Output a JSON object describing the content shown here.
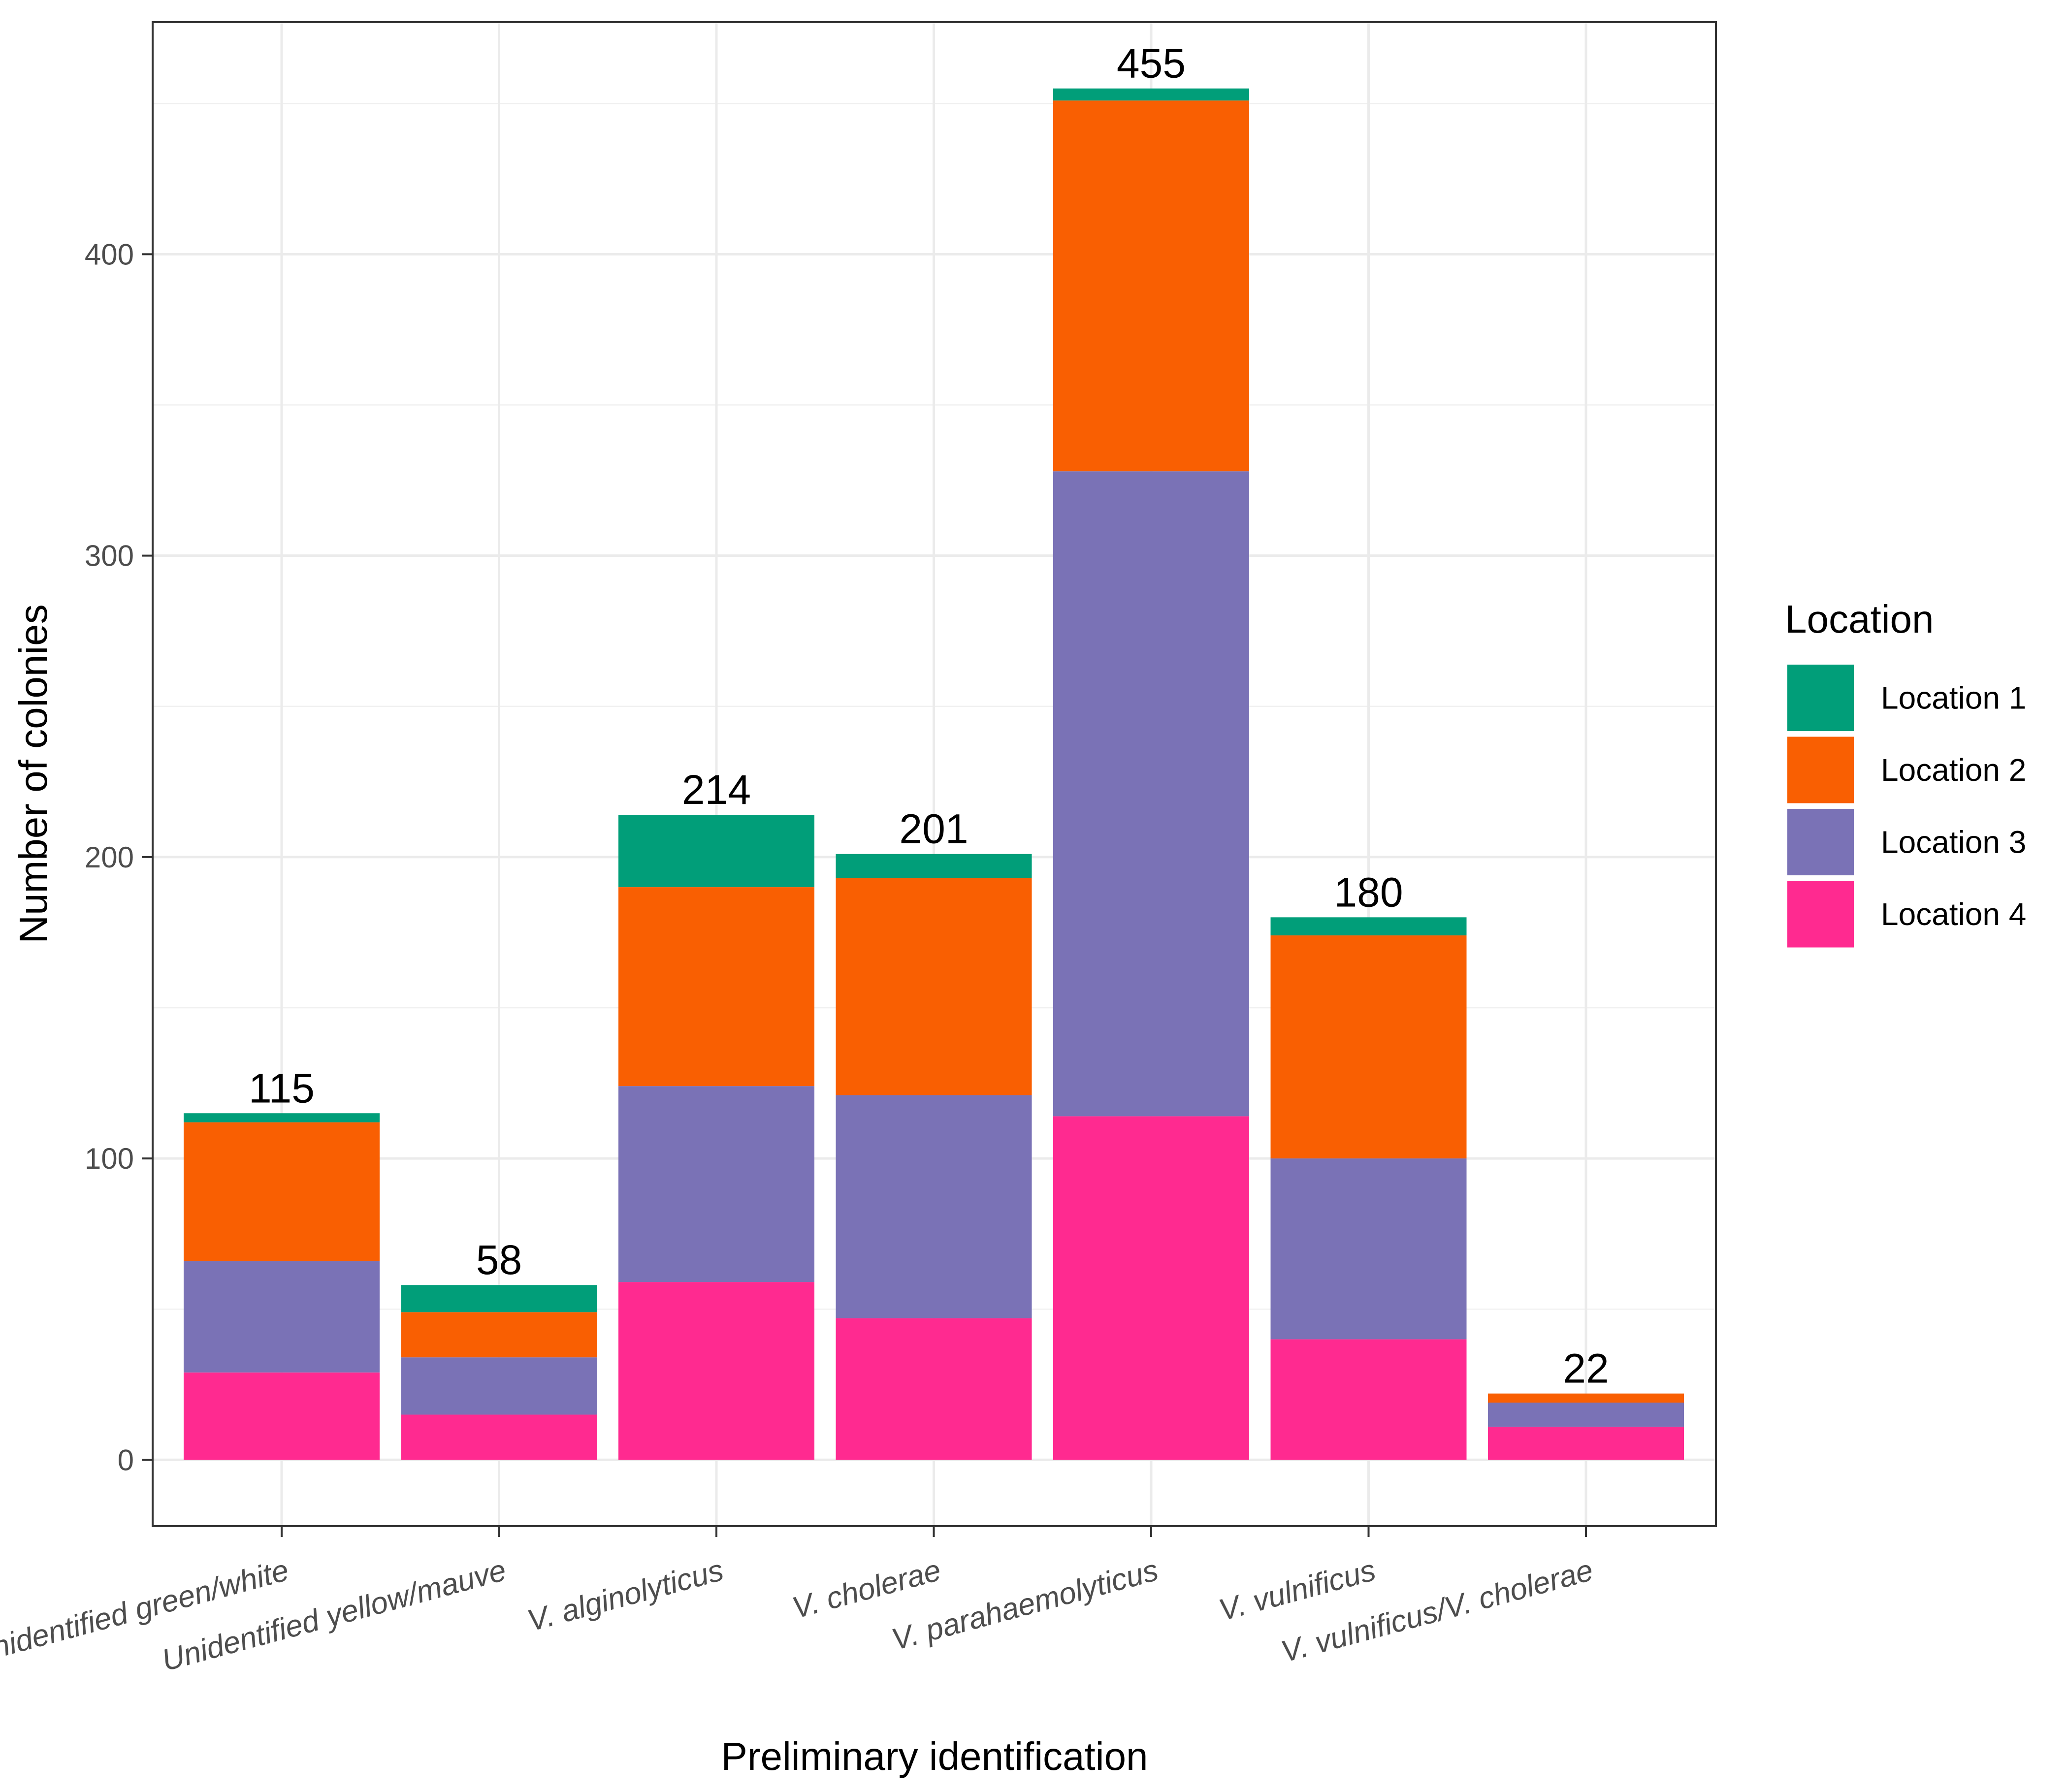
{
  "chart_data": {
    "type": "bar",
    "stacked": true,
    "title": "",
    "xlabel": "Preliminary identification",
    "ylabel": "Number of colonies",
    "ylim": [
      -22,
      477
    ],
    "yticks": [
      0,
      100,
      200,
      300,
      400
    ],
    "grid": true,
    "categories": [
      "Unidentified green/white",
      "Unidentified yellow/mauve",
      "V. alginolyticus",
      "V. cholerae",
      "V. parahaemolyticus",
      "V. vulnificus",
      "V. vulnificus/V. cholerae"
    ],
    "series": [
      {
        "name": "Location 4",
        "color": "#FF2A90",
        "values": [
          29,
          15,
          59,
          47,
          114,
          40,
          11
        ]
      },
      {
        "name": "Location 3",
        "color": "#7A72B6",
        "values": [
          37,
          19,
          65,
          74,
          214,
          60,
          8
        ]
      },
      {
        "name": "Location 2",
        "color": "#F95F02",
        "values": [
          46,
          15,
          66,
          72,
          123,
          74,
          3
        ]
      },
      {
        "name": "Location 1",
        "color": "#019E79",
        "values": [
          3,
          9,
          24,
          8,
          4,
          6,
          0
        ]
      }
    ],
    "totals": [
      115,
      58,
      214,
      201,
      455,
      180,
      22
    ],
    "legend": {
      "title": "Location",
      "position": "right",
      "items": [
        "Location 1",
        "Location 2",
        "Location 3",
        "Location 4"
      ]
    }
  }
}
